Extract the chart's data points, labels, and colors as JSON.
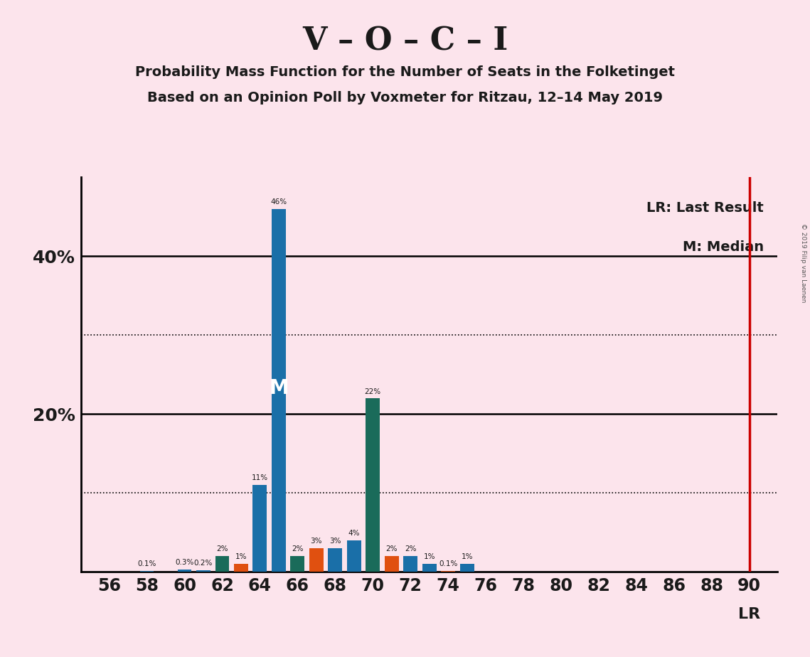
{
  "title_main": "V – O – C – I",
  "title_sub1": "Probability Mass Function for the Number of Seats in the Folketinget",
  "title_sub2": "Based on an Opinion Poll by Voxmeter for Ritzau, 12–14 May 2019",
  "copyright": "© 2019 Filip van Laenen",
  "background_color": "#fce4ec",
  "seats": [
    56,
    57,
    58,
    59,
    60,
    61,
    62,
    63,
    64,
    65,
    66,
    67,
    68,
    69,
    70,
    71,
    72,
    73,
    74,
    75,
    76,
    77,
    78,
    79,
    80,
    81,
    82,
    83,
    84,
    85,
    86,
    87,
    88,
    89,
    90
  ],
  "pmf_values": [
    0.0,
    0.0,
    0.1,
    0.0,
    0.3,
    0.2,
    2.0,
    1.0,
    11.0,
    46.0,
    2.0,
    3.0,
    3.0,
    4.0,
    22.0,
    2.0,
    2.0,
    1.0,
    0.1,
    1.0,
    0.0,
    0.0,
    0.0,
    0.0,
    0.0,
    0.0,
    0.0,
    0.0,
    0.0,
    0.0,
    0.0,
    0.0,
    0.0,
    0.0,
    0.0
  ],
  "median_seat": 65,
  "last_result_seat": 90,
  "lr_color": "#cc0000",
  "bar_color_blue": "#1a6fa8",
  "bar_color_teal": "#1a6b5a",
  "bar_color_orange": "#e05010",
  "bar_colors_index": [
    0,
    0,
    0,
    0,
    0,
    0,
    1,
    2,
    0,
    0,
    1,
    2,
    0,
    0,
    1,
    2,
    0,
    0,
    2,
    0,
    0,
    0,
    0,
    0,
    0,
    0,
    0,
    0,
    0,
    0,
    0,
    0,
    0,
    0,
    0
  ],
  "lr_label": "LR: Last Result",
  "median_label": "M: Median"
}
